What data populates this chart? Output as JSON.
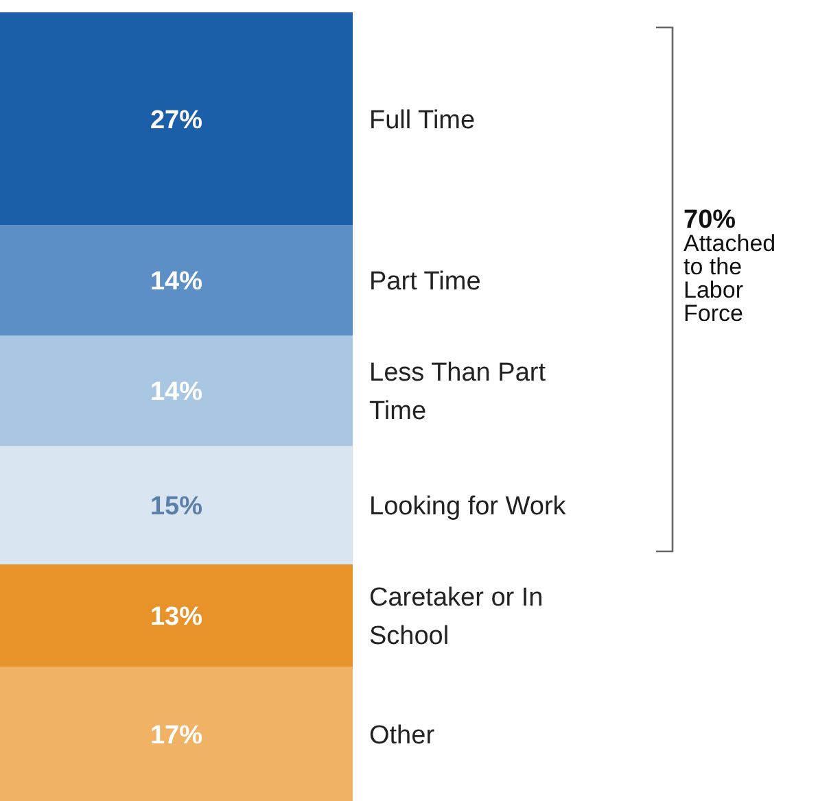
{
  "chart_data": {
    "type": "bar",
    "stacked": true,
    "categories": [
      null
    ],
    "series": [
      {
        "name": "Other",
        "color": "#f0b264",
        "values": [
          17
        ],
        "value_labels": [
          "17%"
        ]
      },
      {
        "name": "Caretaker or In School",
        "color": "#e8922a",
        "values": [
          13
        ],
        "value_labels": [
          "13%"
        ]
      },
      {
        "name": "Looking for Work",
        "color": "#d9e6f2",
        "values": [
          15
        ],
        "value_labels": [
          "15%"
        ]
      },
      {
        "name": "Less Than Part Time",
        "color": "#a9c7e3",
        "values": [
          14
        ],
        "value_labels": [
          "14%"
        ]
      },
      {
        "name": "Part Time",
        "color": "#5b8fc5",
        "values": [
          14
        ],
        "value_labels": [
          "14%"
        ]
      },
      {
        "name": "Full Time",
        "color": "#1a5fa8",
        "values": [
          27
        ],
        "value_labels": [
          "27%"
        ]
      }
    ],
    "annotations": [
      "70% Attached to the Labor Force"
    ]
  }
}
